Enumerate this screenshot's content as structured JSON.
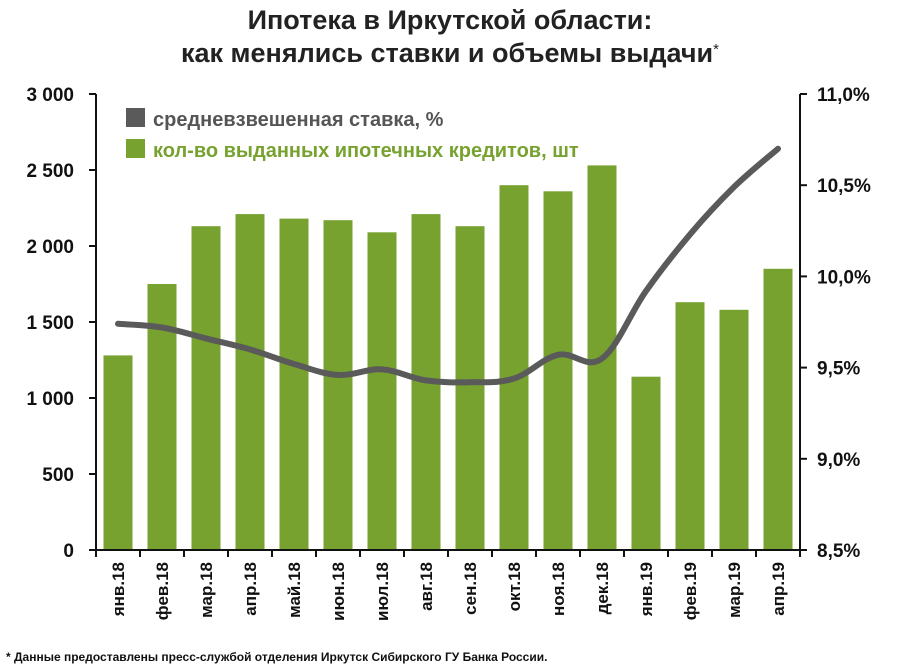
{
  "title_line1": "Ипотека в Иркутской области:",
  "title_line2": "как менялись ставки и объемы выдачи",
  "title_mark": "*",
  "footnote": "* Данные предоставлены пресс-службой отделения Иркутск Сибирского ГУ Банка России.",
  "colors": {
    "bar": "#77a22f",
    "line": "#5a5a5a",
    "axis": "#111111"
  },
  "chart_data": {
    "type": "bar+line",
    "categories": [
      "янв.18",
      "фев.18",
      "мар.18",
      "апр.18",
      "май.18",
      "июн.18",
      "июл.18",
      "авг.18",
      "сен.18",
      "окт.18",
      "ноя.18",
      "дек.18",
      "янв.19",
      "фев.19",
      "мар.19",
      "апр.19"
    ],
    "series": [
      {
        "name": "кол-во выданных ипотечных кредитов, шт",
        "type": "bar",
        "axis": "left",
        "values": [
          1280,
          1750,
          2130,
          2210,
          2180,
          2170,
          2090,
          2210,
          2130,
          2400,
          2360,
          2530,
          1140,
          1630,
          1580,
          1850
        ]
      },
      {
        "name": "средневзвешенная ставка, %",
        "type": "line",
        "axis": "right",
        "values": [
          9.74,
          9.72,
          9.66,
          9.6,
          9.52,
          9.46,
          9.49,
          9.43,
          9.42,
          9.44,
          9.57,
          9.55,
          9.92,
          10.23,
          10.49,
          10.7
        ]
      }
    ],
    "y_left": {
      "min": 0,
      "max": 3000,
      "ticks": [
        0,
        500,
        1000,
        1500,
        2000,
        2500,
        3000
      ],
      "tick_labels": [
        "0",
        "500",
        "1 000",
        "1 500",
        "2 000",
        "2 500",
        "3 000"
      ]
    },
    "y_right": {
      "min": 8.5,
      "max": 11.0,
      "ticks": [
        8.5,
        9.0,
        9.5,
        10.0,
        10.5,
        11.0
      ],
      "tick_labels": [
        "8,5%",
        "9,0%",
        "9,5%",
        "10,0%",
        "10,5%",
        "11,0%"
      ]
    },
    "legend": {
      "position": "top-left",
      "items": [
        "средневзвешенная ставка, %",
        "кол-во выданных ипотечных кредитов, шт"
      ]
    },
    "grid": false
  }
}
